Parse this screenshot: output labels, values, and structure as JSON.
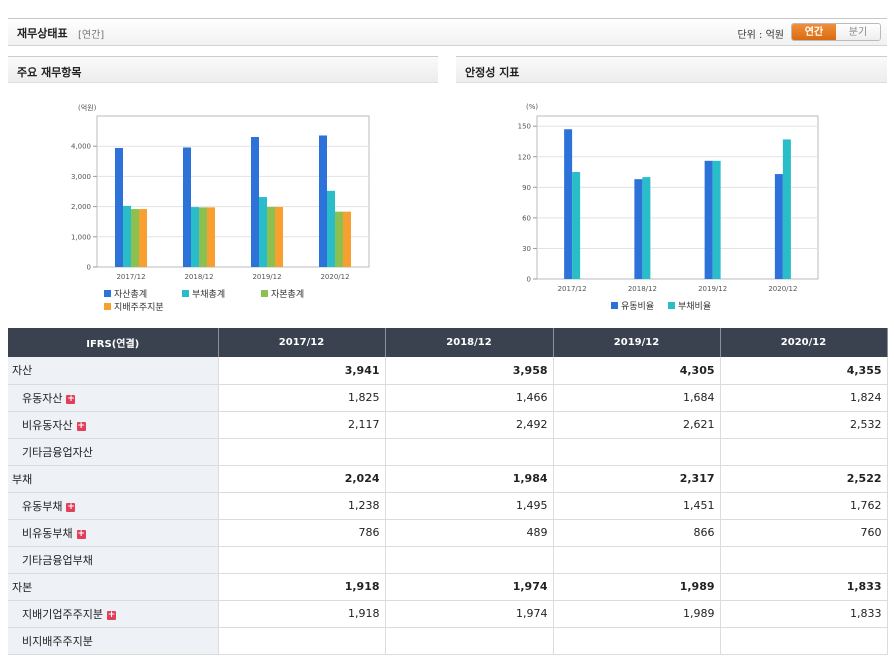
{
  "header": {
    "title": "재무상태표",
    "period": "[연간]",
    "unit_label": "단위 : 억원",
    "toggle": [
      "연간",
      "분기"
    ],
    "active": "연간"
  },
  "panels": {
    "left_title": "주요 재무항목",
    "right_title": "안정성 지표"
  },
  "chart_data": [
    {
      "type": "bar",
      "unit": "(억원)",
      "categories": [
        "2017/12",
        "2018/12",
        "2019/12",
        "2020/12"
      ],
      "ylim": [
        0,
        5000
      ],
      "yticks": [
        0,
        1000,
        2000,
        3000,
        4000
      ],
      "ytick_labels": [
        "0",
        "1,000",
        "2,000",
        "3,000",
        "4,000"
      ],
      "grid": true,
      "legend": "bottom",
      "series": [
        {
          "name": "자산총계",
          "color": "#2d72d9",
          "values": [
            3941,
            3958,
            4305,
            4355
          ]
        },
        {
          "name": "부채총계",
          "color": "#29bcc9",
          "values": [
            2024,
            1984,
            2317,
            2522
          ]
        },
        {
          "name": "자본총계",
          "color": "#8cc152",
          "values": [
            1918,
            1974,
            1989,
            1833
          ]
        },
        {
          "name": "지배주주지분",
          "color": "#f7a030",
          "values": [
            1918,
            1974,
            1989,
            1833
          ]
        }
      ]
    },
    {
      "type": "bar",
      "unit": "(%)",
      "categories": [
        "2017/12",
        "2018/12",
        "2019/12",
        "2020/12"
      ],
      "ylim": [
        0,
        160
      ],
      "yticks": [
        0,
        30,
        60,
        90,
        120,
        150
      ],
      "ytick_labels": [
        "0",
        "30",
        "60",
        "90",
        "120",
        "150"
      ],
      "grid": true,
      "legend": "bottom",
      "series": [
        {
          "name": "유동비율",
          "color": "#2d72d9",
          "values": [
            147,
            98,
            116,
            103
          ]
        },
        {
          "name": "부채비율",
          "color": "#29bcc9",
          "values": [
            105,
            100,
            116,
            137
          ]
        }
      ]
    }
  ],
  "table": {
    "head": [
      "IFRS(연결)",
      "2017/12",
      "2018/12",
      "2019/12",
      "2020/12"
    ],
    "rows": [
      {
        "label": "자산",
        "level": "main",
        "expand": false,
        "values": [
          "3,941",
          "3,958",
          "4,305",
          "4,355"
        ]
      },
      {
        "label": "유동자산",
        "level": "sub",
        "expand": true,
        "values": [
          "1,825",
          "1,466",
          "1,684",
          "1,824"
        ]
      },
      {
        "label": "비유동자산",
        "level": "sub",
        "expand": true,
        "values": [
          "2,117",
          "2,492",
          "2,621",
          "2,532"
        ]
      },
      {
        "label": "기타금융업자산",
        "level": "sub",
        "expand": false,
        "values": [
          "",
          "",
          "",
          ""
        ]
      },
      {
        "label": "부채",
        "level": "main",
        "expand": false,
        "values": [
          "2,024",
          "1,984",
          "2,317",
          "2,522"
        ]
      },
      {
        "label": "유동부채",
        "level": "sub",
        "expand": true,
        "values": [
          "1,238",
          "1,495",
          "1,451",
          "1,762"
        ]
      },
      {
        "label": "비유동부채",
        "level": "sub",
        "expand": true,
        "values": [
          "786",
          "489",
          "866",
          "760"
        ]
      },
      {
        "label": "기타금융업부채",
        "level": "sub",
        "expand": false,
        "values": [
          "",
          "",
          "",
          ""
        ]
      },
      {
        "label": "자본",
        "level": "main",
        "expand": false,
        "values": [
          "1,918",
          "1,974",
          "1,989",
          "1,833"
        ]
      },
      {
        "label": "지배기업주주지분",
        "level": "sub",
        "expand": true,
        "values": [
          "1,918",
          "1,974",
          "1,989",
          "1,833"
        ]
      },
      {
        "label": "비지배주주지분",
        "level": "sub",
        "expand": false,
        "values": [
          "",
          "",
          "",
          ""
        ]
      }
    ],
    "expand_icon": "+"
  }
}
